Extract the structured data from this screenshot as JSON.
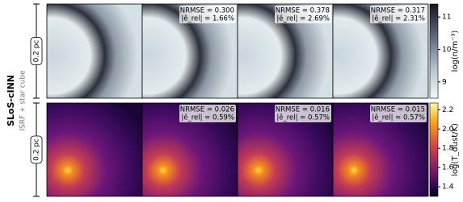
{
  "model": {
    "title": "SLoS-cINN",
    "subtitle": "ISRF + star cube"
  },
  "rows": [
    {
      "scale": "0.2 pc",
      "colorbar": {
        "label": "log(n/m⁻³)",
        "clim": [
          8.5,
          11.4
        ],
        "ticks": [
          9,
          10,
          11
        ]
      },
      "panels": [
        {},
        {
          "nrmse": "NRMSE = 0.300",
          "erel": "|ê_rel| = 1.66%"
        },
        {
          "nrmse": "NRMSE = 0.378",
          "erel": "|ê_rel| = 2.69%"
        },
        {
          "nrmse": "NRMSE = 0.317",
          "erel": "|ê_rel| = 2.31%"
        }
      ]
    },
    {
      "scale": "0.2 pc",
      "colorbar": {
        "label": "log(T_dust/K)",
        "clim": [
          1.3,
          2.27
        ],
        "ticks": [
          1.4,
          1.6,
          1.8,
          {
            "value": 2.0,
            "label": "2.0"
          },
          2.2
        ]
      },
      "panels": [
        {},
        {
          "nrmse": "NRMSE = 0.026",
          "erel": "|ê_rel| = 0.59%"
        },
        {
          "nrmse": "NRMSE = 0.016",
          "erel": "|ê_rel| = 0.57%"
        },
        {
          "nrmse": "NRMSE = 0.015",
          "erel": "|ê_rel| = 0.57%"
        }
      ]
    }
  ]
}
